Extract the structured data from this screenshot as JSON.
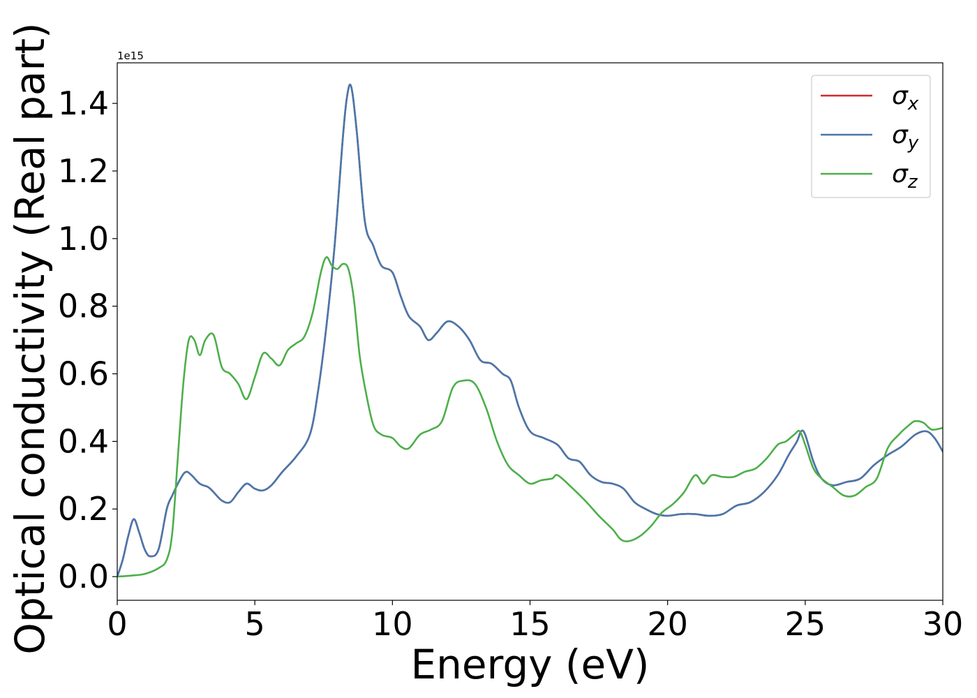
{
  "chart_data": {
    "type": "line",
    "xlabel": "Energy (eV)",
    "ylabel": "Optical conductivity (Real part)",
    "offset_label": "1e15",
    "xlim": [
      0,
      30
    ],
    "ylim": [
      -0.07,
      1.52
    ],
    "xticks": [
      0,
      5,
      10,
      15,
      20,
      25,
      30
    ],
    "xtick_labels": [
      "0",
      "5",
      "10",
      "15",
      "20",
      "25",
      "30"
    ],
    "yticks": [
      0.0,
      0.2,
      0.4,
      0.6,
      0.8,
      1.0,
      1.2,
      1.4
    ],
    "ytick_labels": [
      "0.0",
      "0.2",
      "0.4",
      "0.6",
      "0.8",
      "1.0",
      "1.2",
      "1.4"
    ],
    "grid": false,
    "legend_position": "top-right",
    "series": [
      {
        "name": "σx",
        "name_base": "σ",
        "name_sub": "x",
        "color": "#d62728",
        "x": [
          0,
          0.2,
          0.4,
          0.6,
          0.8,
          1.0,
          1.2,
          1.5,
          1.8,
          2.0,
          2.3,
          2.5,
          2.7,
          3.0,
          3.3,
          3.5,
          3.8,
          4.1,
          4.4,
          4.7,
          5.0,
          5.3,
          5.6,
          6.0,
          6.5,
          7.0,
          7.3,
          7.6,
          7.9,
          8.2,
          8.35,
          8.5,
          8.7,
          9.0,
          9.3,
          9.6,
          10.0,
          10.3,
          10.6,
          11.0,
          11.3,
          11.6,
          12.0,
          12.4,
          12.8,
          13.2,
          13.6,
          14.0,
          14.3,
          14.6,
          15.0,
          15.5,
          16.0,
          16.4,
          16.8,
          17.2,
          17.6,
          18.0,
          18.4,
          18.8,
          19.2,
          19.6,
          20.0,
          20.5,
          21.0,
          21.5,
          22.0,
          22.5,
          23.0,
          23.5,
          24.0,
          24.4,
          24.7,
          24.85,
          25.0,
          25.3,
          25.6,
          26.0,
          26.5,
          27.0,
          27.5,
          28.0,
          28.5,
          29.0,
          29.4,
          29.7,
          30.0
        ],
        "y": [
          0.0,
          0.05,
          0.12,
          0.17,
          0.13,
          0.08,
          0.06,
          0.08,
          0.2,
          0.24,
          0.29,
          0.31,
          0.3,
          0.275,
          0.265,
          0.25,
          0.225,
          0.22,
          0.25,
          0.275,
          0.26,
          0.255,
          0.27,
          0.31,
          0.355,
          0.42,
          0.55,
          0.74,
          0.98,
          1.3,
          1.42,
          1.45,
          1.32,
          1.05,
          0.98,
          0.92,
          0.9,
          0.83,
          0.77,
          0.74,
          0.7,
          0.72,
          0.755,
          0.74,
          0.7,
          0.64,
          0.63,
          0.6,
          0.58,
          0.5,
          0.43,
          0.41,
          0.39,
          0.35,
          0.34,
          0.3,
          0.28,
          0.275,
          0.26,
          0.22,
          0.2,
          0.185,
          0.18,
          0.185,
          0.185,
          0.18,
          0.185,
          0.21,
          0.22,
          0.25,
          0.3,
          0.36,
          0.4,
          0.43,
          0.42,
          0.34,
          0.29,
          0.27,
          0.28,
          0.29,
          0.33,
          0.36,
          0.385,
          0.42,
          0.43,
          0.41,
          0.37
        ]
      },
      {
        "name": "σy",
        "name_base": "σ",
        "name_sub": "y",
        "color": "#4878ad",
        "x": [
          0,
          0.2,
          0.4,
          0.6,
          0.8,
          1.0,
          1.2,
          1.5,
          1.8,
          2.0,
          2.3,
          2.5,
          2.7,
          3.0,
          3.3,
          3.5,
          3.8,
          4.1,
          4.4,
          4.7,
          5.0,
          5.3,
          5.6,
          6.0,
          6.5,
          7.0,
          7.3,
          7.6,
          7.9,
          8.2,
          8.35,
          8.5,
          8.7,
          9.0,
          9.3,
          9.6,
          10.0,
          10.3,
          10.6,
          11.0,
          11.3,
          11.6,
          12.0,
          12.4,
          12.8,
          13.2,
          13.6,
          14.0,
          14.3,
          14.6,
          15.0,
          15.5,
          16.0,
          16.4,
          16.8,
          17.2,
          17.6,
          18.0,
          18.4,
          18.8,
          19.2,
          19.6,
          20.0,
          20.5,
          21.0,
          21.5,
          22.0,
          22.5,
          23.0,
          23.5,
          24.0,
          24.4,
          24.7,
          24.85,
          25.0,
          25.3,
          25.6,
          26.0,
          26.5,
          27.0,
          27.5,
          28.0,
          28.5,
          29.0,
          29.4,
          29.7,
          30.0
        ],
        "y": [
          0.0,
          0.05,
          0.12,
          0.17,
          0.13,
          0.08,
          0.06,
          0.08,
          0.2,
          0.24,
          0.29,
          0.31,
          0.3,
          0.275,
          0.265,
          0.25,
          0.225,
          0.22,
          0.25,
          0.275,
          0.26,
          0.255,
          0.27,
          0.31,
          0.355,
          0.42,
          0.55,
          0.74,
          0.98,
          1.3,
          1.42,
          1.45,
          1.32,
          1.05,
          0.98,
          0.92,
          0.9,
          0.83,
          0.77,
          0.74,
          0.7,
          0.72,
          0.755,
          0.74,
          0.7,
          0.64,
          0.63,
          0.6,
          0.58,
          0.5,
          0.43,
          0.41,
          0.39,
          0.35,
          0.34,
          0.3,
          0.28,
          0.275,
          0.26,
          0.22,
          0.2,
          0.185,
          0.18,
          0.185,
          0.185,
          0.18,
          0.185,
          0.21,
          0.22,
          0.25,
          0.3,
          0.36,
          0.4,
          0.43,
          0.42,
          0.34,
          0.29,
          0.27,
          0.28,
          0.29,
          0.33,
          0.36,
          0.385,
          0.42,
          0.43,
          0.41,
          0.37
        ]
      },
      {
        "name": "σz",
        "name_base": "σ",
        "name_sub": "z",
        "color": "#4daf4a",
        "x": [
          0,
          0.5,
          1.0,
          1.5,
          1.8,
          2.0,
          2.2,
          2.4,
          2.6,
          2.8,
          3.0,
          3.2,
          3.5,
          3.8,
          4.1,
          4.4,
          4.7,
          5.0,
          5.3,
          5.6,
          5.9,
          6.2,
          6.5,
          6.8,
          7.1,
          7.4,
          7.6,
          7.8,
          8.0,
          8.2,
          8.4,
          8.6,
          8.8,
          9.0,
          9.3,
          9.6,
          10.0,
          10.3,
          10.6,
          11.0,
          11.4,
          11.8,
          12.2,
          12.6,
          13.0,
          13.4,
          13.8,
          14.2,
          14.6,
          15.0,
          15.4,
          15.8,
          16.0,
          16.5,
          17.0,
          17.5,
          18.0,
          18.3,
          18.6,
          19.0,
          19.4,
          19.8,
          20.2,
          20.6,
          21.0,
          21.3,
          21.6,
          22.0,
          22.4,
          22.8,
          23.2,
          23.6,
          24.0,
          24.3,
          24.6,
          24.8,
          25.0,
          25.3,
          25.6,
          26.0,
          26.4,
          26.8,
          27.2,
          27.6,
          28.0,
          28.4,
          28.8,
          29.0,
          29.3,
          29.6,
          30.0
        ],
        "y": [
          0.0,
          0.003,
          0.008,
          0.025,
          0.05,
          0.13,
          0.35,
          0.57,
          0.7,
          0.7,
          0.655,
          0.7,
          0.715,
          0.62,
          0.6,
          0.57,
          0.525,
          0.59,
          0.66,
          0.645,
          0.625,
          0.67,
          0.69,
          0.71,
          0.78,
          0.9,
          0.945,
          0.92,
          0.91,
          0.925,
          0.91,
          0.82,
          0.66,
          0.56,
          0.45,
          0.42,
          0.41,
          0.385,
          0.38,
          0.42,
          0.435,
          0.46,
          0.56,
          0.58,
          0.57,
          0.5,
          0.4,
          0.33,
          0.3,
          0.275,
          0.285,
          0.29,
          0.3,
          0.265,
          0.225,
          0.18,
          0.14,
          0.11,
          0.105,
          0.12,
          0.15,
          0.19,
          0.215,
          0.25,
          0.3,
          0.275,
          0.3,
          0.295,
          0.295,
          0.31,
          0.32,
          0.35,
          0.39,
          0.4,
          0.42,
          0.43,
          0.39,
          0.32,
          0.29,
          0.265,
          0.24,
          0.24,
          0.265,
          0.29,
          0.38,
          0.42,
          0.45,
          0.46,
          0.455,
          0.435,
          0.44
        ]
      }
    ]
  }
}
